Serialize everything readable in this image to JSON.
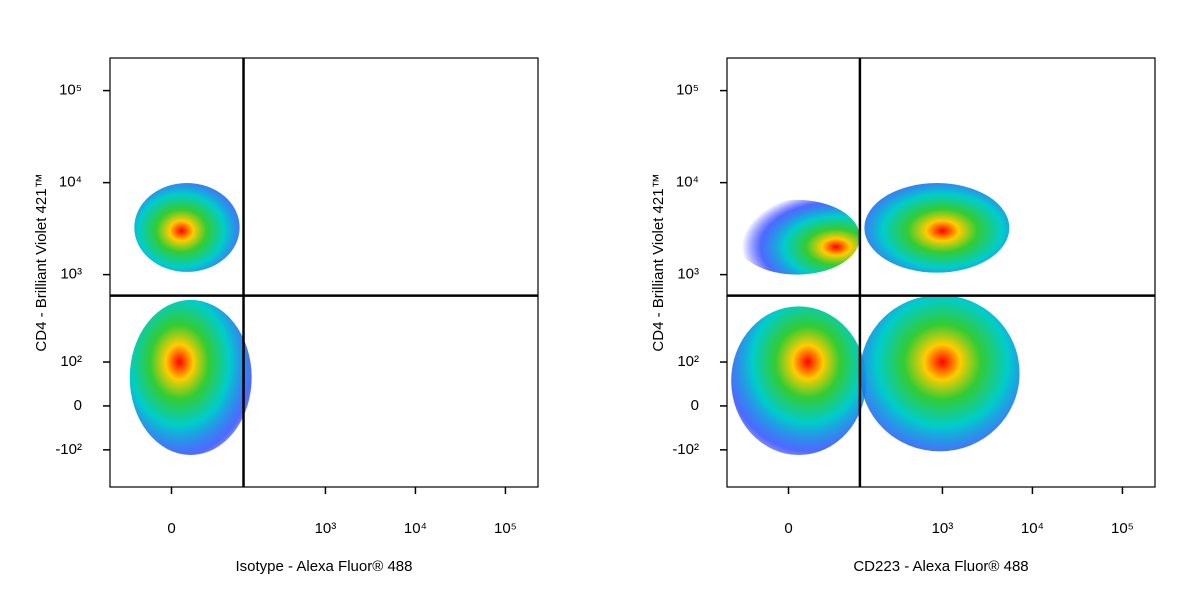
{
  "chart_data": [
    {
      "type": "density",
      "x_label": "Isotype - Alexa Fluor® 488",
      "y_label": "CD4 - Brilliant Violet 421™",
      "xscale": "biexponential",
      "yscale": "biexponential",
      "xlim": [
        -90,
        230000
      ],
      "ylim": [
        -280,
        226000
      ],
      "xticks": [
        0,
        {
          "value": 1000,
          "label": "10³"
        },
        {
          "value": 10000,
          "label": "10⁴"
        },
        {
          "value": 100000,
          "label": "10⁵"
        }
      ],
      "yticks": [
        {
          "value": -100,
          "label": "-10²"
        },
        0,
        {
          "value": 100,
          "label": "10²"
        },
        {
          "value": 1000,
          "label": "10³"
        },
        {
          "value": 10000,
          "label": "10⁴"
        },
        {
          "value": 100000,
          "label": "10⁵"
        }
      ],
      "gates": {
        "x": 120,
        "y": 590
      },
      "clusters": [
        {
          "x": [
            -43,
            108
          ],
          "y": [
            1070,
            9900
          ],
          "peak": [
            10,
            3000
          ]
        },
        {
          "x": [
            -50,
            149
          ],
          "y": [
            -117,
            530
          ],
          "peak": [
            8,
            100
          ]
        }
      ]
    },
    {
      "type": "density",
      "x_label": "CD223 - Alexa Fluor® 488",
      "y_label": "CD4 - Brilliant Violet 421™",
      "xscale": "biexponential",
      "yscale": "biexponential",
      "xlim": [
        -90,
        230000
      ],
      "ylim": [
        -280,
        226000
      ],
      "xticks": [
        0,
        {
          "value": 1000,
          "label": "10³"
        },
        {
          "value": 10000,
          "label": "10⁴"
        },
        {
          "value": 100000,
          "label": "10⁵"
        }
      ],
      "yticks": [
        {
          "value": -100,
          "label": "-10²"
        },
        0,
        {
          "value": 100,
          "label": "10²"
        },
        {
          "value": 1000,
          "label": "10³"
        },
        {
          "value": 10000,
          "label": "10⁴"
        },
        {
          "value": 100000,
          "label": "10⁵"
        }
      ],
      "gates": {
        "x": 118,
        "y": 590
      },
      "clusters": [
        {
          "x": [
            -73,
            118
          ],
          "y": [
            1000,
            6500
          ],
          "peak": [
            60,
            2000
          ]
        },
        {
          "x": [
            -80,
            140
          ],
          "y": [
            -117,
            450
          ],
          "peak": [
            20,
            100
          ]
        },
        {
          "x": [
            133,
            5540
          ],
          "y": [
            1050,
            9900
          ],
          "peak": [
            1000,
            3000
          ]
        },
        {
          "x": [
            118,
            7200
          ],
          "y": [
            -105,
            600
          ],
          "peak": [
            1000,
            100
          ]
        }
      ]
    }
  ]
}
